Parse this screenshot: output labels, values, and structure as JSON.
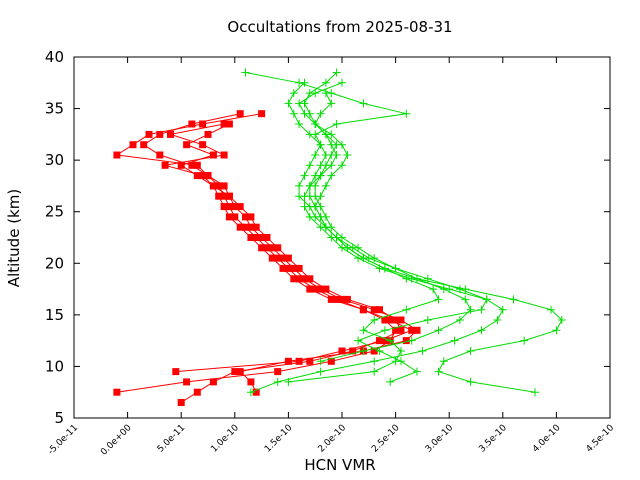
{
  "chart_data": {
    "type": "line",
    "title": "Occultations from 2025-08-31",
    "xlabel": "HCN VMR",
    "ylabel": "Altitude (km)",
    "xlim": [
      -5e-11,
      4.5e-10
    ],
    "ylim": [
      5,
      40
    ],
    "x_ticks": [
      -5e-11,
      0,
      5e-11,
      1e-10,
      1.5e-10,
      2e-10,
      2.5e-10,
      3e-10,
      3.5e-10,
      4e-10,
      4.5e-10
    ],
    "x_tick_labels": [
      "-5.0e-11",
      "0.0e+00",
      "5.0e-11",
      "1.0e-10",
      "1.5e-10",
      "2.0e-10",
      "2.5e-10",
      "3.0e-10",
      "3.5e-10",
      "4.0e-10",
      "4.5e-10"
    ],
    "y_ticks": [
      5,
      10,
      15,
      20,
      25,
      30,
      35,
      40
    ],
    "y_tick_labels": [
      "5",
      "10",
      "15",
      "20",
      "25",
      "30",
      "35",
      "40"
    ],
    "grid": false,
    "legend": "none",
    "colors": {
      "red_series": "#ff0000",
      "green_series": "#00dd00",
      "axis": "#000000"
    },
    "series": [
      {
        "color": "#ff0000",
        "marker": "square",
        "altitude": [
          7.5,
          8.5,
          9.5,
          10.5,
          11.5,
          12.5,
          13.5,
          14.5,
          15.5,
          16.5,
          17.5,
          18.5,
          19.5,
          20.5,
          21.5,
          22.5,
          23.5,
          24.5,
          25.5,
          26.5,
          27.5,
          28.5,
          29.5,
          30.5,
          31.5,
          32.5,
          33.5,
          34.5
        ],
        "vmr": [
          -1e-11,
          5.5e-11,
          1.4e-10,
          1.9e-10,
          2.3e-10,
          2.45e-10,
          2.5e-10,
          2.4e-10,
          2.2e-10,
          1.95e-10,
          1.75e-10,
          1.6e-10,
          1.5e-10,
          1.4e-10,
          1.3e-10,
          1.2e-10,
          1.1e-10,
          1e-10,
          9.5e-11,
          9e-11,
          8.5e-11,
          7.5e-11,
          6e-11,
          3e-11,
          1.5e-11,
          3e-11,
          6e-11,
          1.05e-10
        ]
      },
      {
        "color": "#ff0000",
        "marker": "square",
        "altitude": [
          6.5,
          7.5,
          8.5,
          9.5,
          10.5,
          11.5,
          12.5,
          13.5,
          14.5,
          15.5,
          16.5,
          17.5,
          18.5,
          19.5,
          20.5,
          21.5,
          22.5,
          23.5,
          24.5,
          25.5,
          26.5,
          27.5,
          28.5,
          29.5,
          30.5,
          31.5,
          32.5,
          33.5,
          34.5
        ],
        "vmr": [
          5e-11,
          6.5e-11,
          8e-11,
          1e-10,
          1.7e-10,
          2.1e-10,
          2.35e-10,
          2.55e-10,
          2.5e-10,
          2.35e-10,
          2.05e-10,
          1.85e-10,
          1.7e-10,
          1.6e-10,
          1.5e-10,
          1.4e-10,
          1.3e-10,
          1.2e-10,
          1.15e-10,
          1.05e-10,
          9.5e-11,
          9e-11,
          7.5e-11,
          6.5e-11,
          -1e-11,
          5e-12,
          2e-11,
          7e-11,
          1.25e-10
        ]
      },
      {
        "color": "#ff0000",
        "marker": "square",
        "altitude": [
          7.5,
          8.5,
          9.5,
          10.5,
          11.5,
          12.5,
          13.5,
          14.5,
          15.5,
          16.5,
          17.5,
          18.5,
          19.5,
          20.5,
          21.5,
          22.5,
          23.5,
          24.5,
          25.5,
          26.5,
          27.5,
          28.5,
          29.5,
          30.5,
          31.5,
          32.5,
          33.5
        ],
        "vmr": [
          1.2e-10,
          1.15e-10,
          1.05e-10,
          1.5e-10,
          2.2e-10,
          2.6e-10,
          2.7e-10,
          2.55e-10,
          2.3e-10,
          2e-10,
          1.8e-10,
          1.65e-10,
          1.55e-10,
          1.45e-10,
          1.35e-10,
          1.25e-10,
          1.15e-10,
          1.1e-10,
          1e-10,
          9.5e-11,
          8e-11,
          6.5e-11,
          5e-11,
          8e-11,
          5.5e-11,
          7.5e-11,
          9.5e-11
        ]
      },
      {
        "color": "#ff0000",
        "marker": "square",
        "altitude": [
          9.5,
          10.5,
          11.5,
          12.5,
          13.5,
          14.5,
          15.5,
          16.5,
          17.5,
          18.5,
          19.5,
          20.5,
          21.5,
          22.5,
          23.5,
          24.5,
          25.5,
          26.5,
          27.5,
          28.5,
          29.5,
          30.5,
          31.5,
          32.5,
          33.5
        ],
        "vmr": [
          4.5e-11,
          1.6e-10,
          2e-10,
          2.4e-10,
          2.65e-10,
          2.45e-10,
          2.2e-10,
          1.9e-10,
          1.7e-10,
          1.55e-10,
          1.45e-10,
          1.35e-10,
          1.25e-10,
          1.15e-10,
          1.05e-10,
          9.5e-11,
          9e-11,
          8.5e-11,
          8e-11,
          7e-11,
          3.5e-11,
          9e-11,
          7e-11,
          4e-11,
          9e-11
        ]
      },
      {
        "color": "#00dd00",
        "marker": "plus",
        "altitude": [
          7.5,
          8.5,
          9.5,
          10.5,
          11.5,
          12.5,
          13.5,
          14.5,
          15.5,
          16.5,
          17.5,
          18.5,
          19.5,
          20.5,
          21.5,
          22.5,
          23.5,
          24.5,
          25.5,
          26.5,
          27.5,
          28.5,
          29.5,
          30.5,
          31.5,
          32.5,
          33.5,
          34.5,
          35.5,
          36.5,
          37.5,
          38.5
        ],
        "vmr": [
          3.8e-10,
          3.2e-10,
          2.9e-10,
          2.95e-10,
          3.2e-10,
          3.7e-10,
          4e-10,
          4.05e-10,
          3.95e-10,
          3.6e-10,
          3.15e-10,
          2.7e-10,
          2.4e-10,
          2.2e-10,
          2.05e-10,
          1.95e-10,
          1.85e-10,
          1.8e-10,
          1.75e-10,
          1.7e-10,
          1.7e-10,
          1.75e-10,
          1.8e-10,
          1.85e-10,
          1.8e-10,
          1.75e-10,
          1.95e-10,
          2.6e-10,
          2.2e-10,
          1.9e-10,
          1.6e-10,
          1.1e-10
        ]
      },
      {
        "color": "#00dd00",
        "marker": "plus",
        "altitude": [
          7.5,
          8.5,
          9.5,
          10.5,
          11.5,
          12.5,
          13.5,
          14.5,
          15.5,
          16.5,
          17.5,
          18.5,
          19.5,
          20.5,
          21.5,
          22.5,
          23.5,
          24.5,
          25.5,
          26.5,
          27.5,
          28.5,
          29.5,
          30.5,
          31.5,
          32.5,
          33.5,
          34.5,
          35.5,
          36.5,
          37.5,
          38.5
        ],
        "vmr": [
          1.15e-10,
          1.4e-10,
          1.8e-10,
          2.3e-10,
          2.75e-10,
          3.05e-10,
          3.3e-10,
          3.45e-10,
          3.5e-10,
          3.35e-10,
          3e-10,
          2.65e-10,
          2.35e-10,
          2.15e-10,
          2e-10,
          1.9e-10,
          1.8e-10,
          1.7e-10,
          1.65e-10,
          1.65e-10,
          1.7e-10,
          1.8e-10,
          1.9e-10,
          1.95e-10,
          1.9e-10,
          1.85e-10,
          1.75e-10,
          1.7e-10,
          1.65e-10,
          1.7e-10,
          1.85e-10,
          1.95e-10
        ]
      },
      {
        "color": "#00dd00",
        "marker": "plus",
        "altitude": [
          8.5,
          9.5,
          10.5,
          11.5,
          12.5,
          13.5,
          14.5,
          15.5,
          16.5,
          17.5,
          18.5,
          19.5,
          20.5,
          21.5,
          22.5,
          23.5,
          24.5,
          25.5,
          26.5,
          27.5,
          28.5,
          29.5,
          30.5,
          31.5,
          32.5,
          33.5,
          34.5,
          35.5,
          36.5,
          37.5
        ],
        "vmr": [
          2.45e-10,
          2.7e-10,
          2.55e-10,
          2.35e-10,
          2.15e-10,
          2.4e-10,
          2.8e-10,
          3.3e-10,
          3.35e-10,
          3.1e-10,
          2.8e-10,
          2.5e-10,
          2.25e-10,
          2.1e-10,
          1.95e-10,
          1.85e-10,
          1.75e-10,
          1.7e-10,
          1.6e-10,
          1.6e-10,
          1.65e-10,
          1.7e-10,
          1.75e-10,
          1.8e-10,
          1.7e-10,
          1.6e-10,
          1.55e-10,
          1.5e-10,
          1.55e-10,
          1.65e-10
        ]
      },
      {
        "color": "#00dd00",
        "marker": "plus",
        "altitude": [
          8.5,
          9.5,
          10.5,
          11.5,
          12.5,
          13.5,
          14.5,
          15.5,
          16.5,
          17.5,
          18.5,
          19.5,
          20.5,
          21.5,
          22.5,
          23.5,
          24.5,
          25.5,
          26.5,
          27.5,
          28.5,
          29.5,
          30.5,
          31.5,
          32.5,
          33.5,
          34.5,
          35.5,
          36.5,
          37.5
        ],
        "vmr": [
          1.5e-10,
          2.3e-10,
          2.5e-10,
          2.55e-10,
          2.45e-10,
          2.2e-10,
          2.3e-10,
          2.6e-10,
          2.9e-10,
          2.85e-10,
          2.6e-10,
          2.4e-10,
          2.2e-10,
          2.05e-10,
          1.95e-10,
          1.85e-10,
          1.8e-10,
          1.75e-10,
          1.8e-10,
          1.85e-10,
          1.9e-10,
          2e-10,
          2.05e-10,
          2e-10,
          1.9e-10,
          1.75e-10,
          1.65e-10,
          1.6e-10,
          1.75e-10,
          2e-10
        ]
      },
      {
        "color": "#00dd00",
        "marker": "plus",
        "altitude": [
          10.5,
          11.5,
          12.5,
          13.5,
          14.5,
          15.5,
          16.5,
          17.5,
          18.5,
          19.5,
          20.5,
          21.5,
          22.5,
          23.5,
          24.5,
          25.5,
          26.5,
          27.5,
          28.5,
          29.5,
          30.5,
          31.5,
          32.5,
          33.5,
          34.5,
          35.5,
          36.5
        ],
        "vmr": [
          1.8e-10,
          2.2e-10,
          2.65e-10,
          2.9e-10,
          3.1e-10,
          3.2e-10,
          3.15e-10,
          2.95e-10,
          2.7e-10,
          2.5e-10,
          2.3e-10,
          2.15e-10,
          2e-10,
          1.9e-10,
          1.85e-10,
          1.8e-10,
          1.75e-10,
          1.75e-10,
          1.8e-10,
          1.85e-10,
          1.9e-10,
          1.95e-10,
          1.85e-10,
          1.75e-10,
          1.8e-10,
          1.9e-10,
          1.85e-10
        ]
      }
    ]
  }
}
